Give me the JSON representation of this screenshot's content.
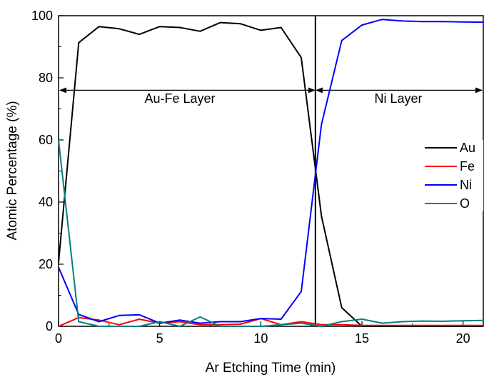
{
  "chart_data": {
    "type": "line",
    "xlabel": "Ar Etching Time (min)",
    "ylabel": "Atomic Percentage (%)",
    "xlim": [
      0,
      21
    ],
    "ylim": [
      0,
      100
    ],
    "x_ticks": [
      0,
      5,
      10,
      15,
      20
    ],
    "y_ticks": [
      0,
      20,
      40,
      60,
      80,
      100
    ],
    "grid": false,
    "legend_position": "right",
    "x": [
      0,
      1,
      2,
      3,
      4,
      5,
      6,
      7,
      8,
      9,
      10,
      11,
      12,
      13,
      14,
      15,
      16,
      17,
      18,
      19,
      20,
      21
    ],
    "series": [
      {
        "name": "Au",
        "color": "#000000",
        "values": [
          20.5,
          91.3,
          96.5,
          95.8,
          94.0,
          96.5,
          96.2,
          95.0,
          97.8,
          97.4,
          95.3,
          96.2,
          86.5,
          35.5,
          6.0,
          0.0,
          0.0,
          0.0,
          0.0,
          0.0,
          0.0,
          0.0
        ]
      },
      {
        "name": "Fe",
        "color": "#ff0000",
        "values": [
          0.0,
          2.8,
          2.0,
          0.5,
          2.3,
          1.0,
          1.5,
          0.5,
          0.5,
          0.7,
          2.5,
          0.5,
          1.5,
          0.5,
          0.5,
          0.3,
          0.3,
          0.3,
          0.3,
          0.3,
          0.3,
          0.3
        ]
      },
      {
        "name": "Ni",
        "color": "#0000ff",
        "values": [
          19.0,
          3.8,
          1.5,
          3.5,
          3.7,
          1.0,
          2.0,
          1.0,
          1.5,
          1.5,
          2.5,
          2.3,
          11.2,
          65.0,
          92.0,
          97.0,
          98.8,
          98.3,
          98.1,
          98.1,
          98.0,
          97.9
        ]
      },
      {
        "name": "O",
        "color": "#008080",
        "values": [
          60.0,
          1.5,
          0.0,
          0.0,
          0.0,
          1.5,
          0.0,
          3.0,
          0.0,
          0.0,
          0.0,
          0.5,
          1.0,
          0.0,
          1.5,
          2.3,
          1.0,
          1.5,
          1.7,
          1.6,
          1.8,
          1.9
        ]
      }
    ],
    "vertical_line_x": 12.7,
    "arrow_y": 76,
    "annotations": [
      {
        "text": "Au-Fe Layer",
        "x": 6.0,
        "y": 72
      },
      {
        "text": "Ni Layer",
        "x": 16.8,
        "y": 72
      }
    ]
  }
}
